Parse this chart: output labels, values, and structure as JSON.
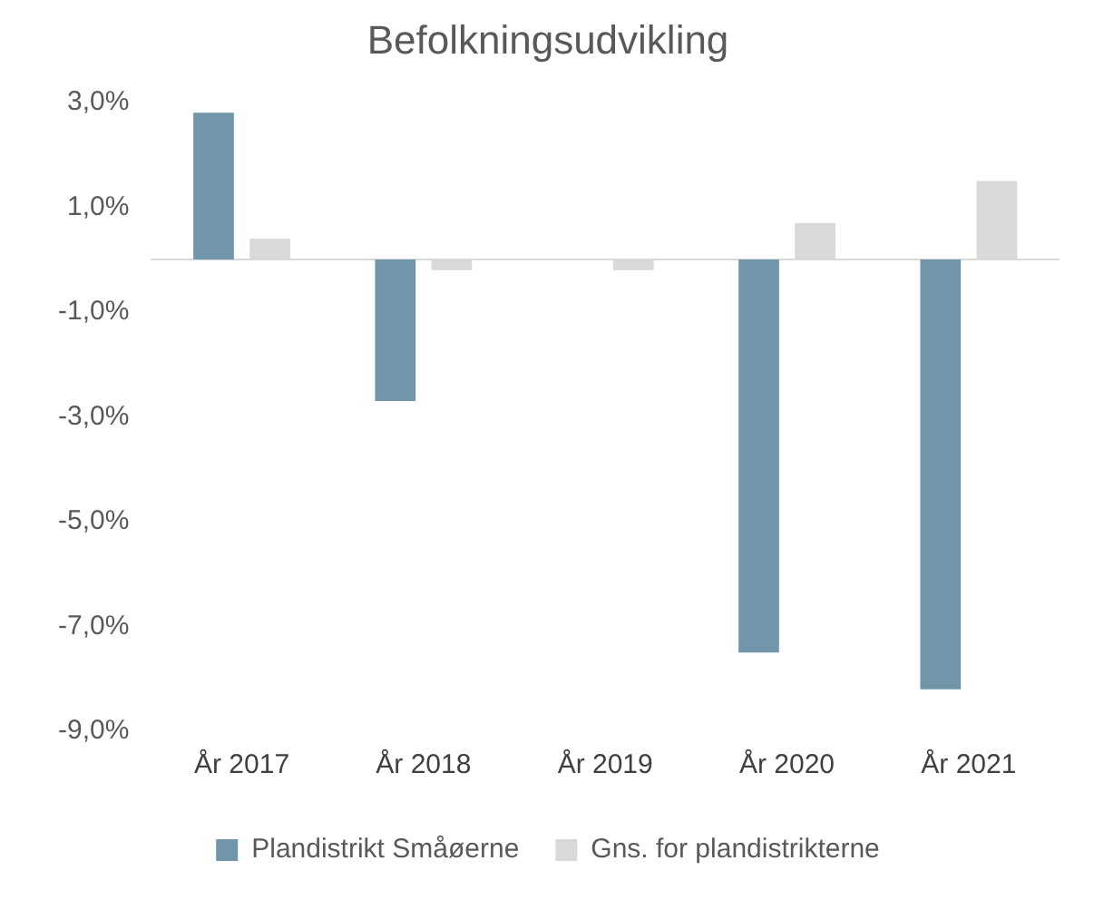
{
  "chart_data": {
    "type": "bar",
    "title": "Befolkningsudvikling",
    "categories": [
      "År 2017",
      "År 2018",
      "År 2019",
      "År 2020",
      "År 2021"
    ],
    "series": [
      {
        "name": "Plandistrikt Småøerne",
        "color": "#7196aa",
        "values": [
          2.8,
          -2.7,
          0,
          -7.5,
          -8.2
        ]
      },
      {
        "name": "Gns. for plandistrikterne",
        "color": "#d9d9d9",
        "values": [
          0.4,
          -0.2,
          -0.2,
          0.7,
          1.5
        ]
      }
    ],
    "ylim": [
      -9,
      3
    ],
    "yticks": [
      {
        "value": 3,
        "label": "3,0%"
      },
      {
        "value": 1,
        "label": "1,0%"
      },
      {
        "value": -1,
        "label": "-1,0%"
      },
      {
        "value": -3,
        "label": "-3,0%"
      },
      {
        "value": -5,
        "label": "-5,0%"
      },
      {
        "value": -7,
        "label": "-7,0%"
      },
      {
        "value": -9,
        "label": "-9,0%"
      }
    ],
    "grid": false,
    "legend": "bottom"
  }
}
